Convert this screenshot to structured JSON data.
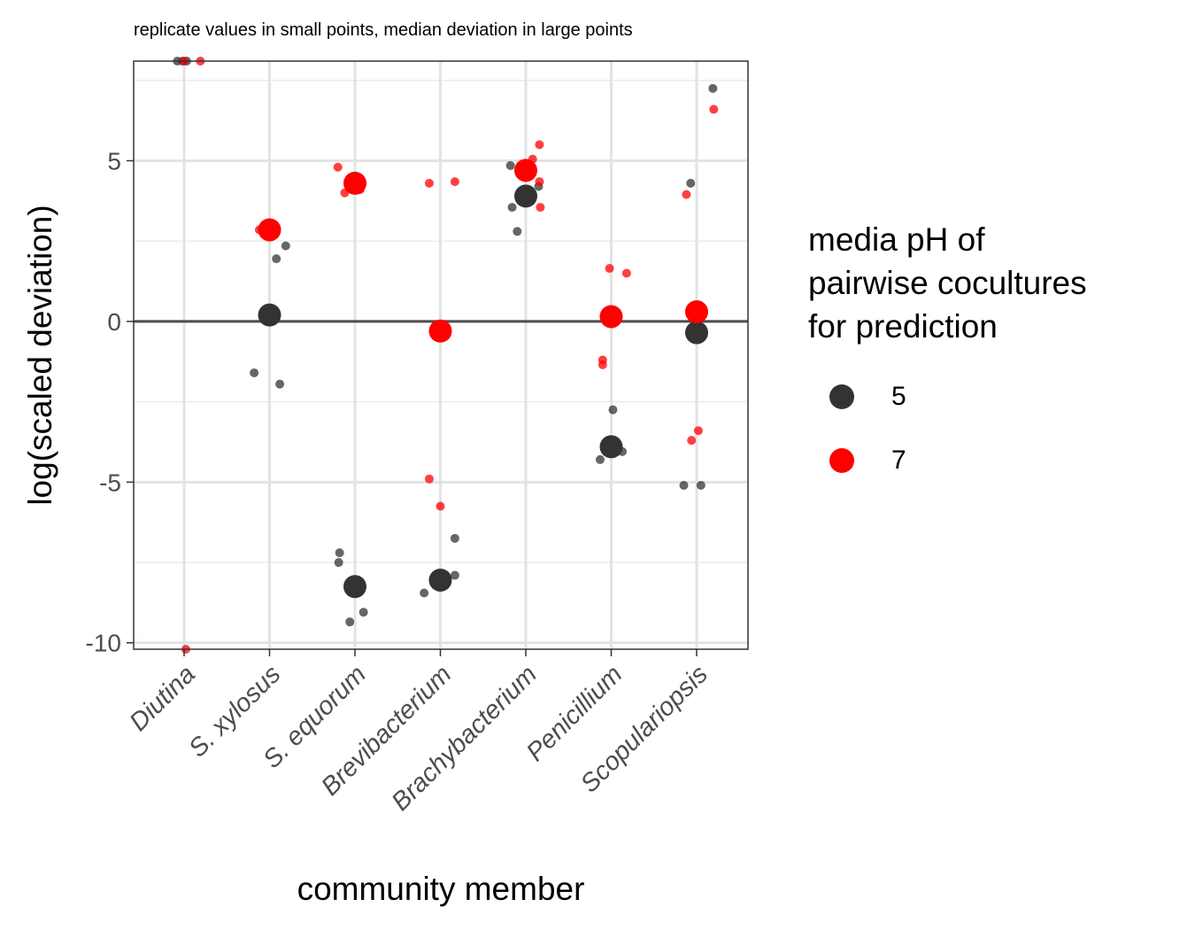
{
  "chart_data": {
    "type": "scatter",
    "title": "replicate values in small points, median deviation in large points",
    "xlabel": "community member",
    "ylabel": "log(scaled deviation)",
    "categories": [
      "Diutina",
      "S. xylosus",
      "S. equorum",
      "Brevibacterium",
      "Brachybacterium",
      "Penicillium",
      "Scopulariopsis"
    ],
    "ylim": [
      -10.2,
      8.1
    ],
    "yticks": [
      -10,
      -5,
      0,
      5
    ],
    "ytick_labels": [
      "-10",
      "-5",
      "0",
      "5"
    ],
    "reference_line_y": 0,
    "grid": true,
    "legend": {
      "title_lines": [
        "media pH of",
        "pairwise cocultures",
        "for prediction"
      ],
      "placement": "right",
      "entries": [
        {
          "label": "5",
          "color": "#333333"
        },
        {
          "label": "7",
          "color": "#ff0000"
        }
      ]
    },
    "series": [
      {
        "name": "5",
        "color": "#333333",
        "replicates": [
          {
            "category": "Diutina",
            "offset": -0.08,
            "y": 8.1
          },
          {
            "category": "Diutina",
            "offset": -0.02,
            "y": 8.1
          },
          {
            "category": "Diutina",
            "offset": 0.03,
            "y": 8.1
          },
          {
            "category": "S. xylosus",
            "offset": -0.18,
            "y": -1.6
          },
          {
            "category": "S. xylosus",
            "offset": 0.08,
            "y": 1.95
          },
          {
            "category": "S. xylosus",
            "offset": 0.19,
            "y": 2.35
          },
          {
            "category": "S. xylosus",
            "offset": 0.12,
            "y": -1.95
          },
          {
            "category": "S. equorum",
            "offset": -0.18,
            "y": -7.2
          },
          {
            "category": "S. equorum",
            "offset": -0.19,
            "y": -7.5
          },
          {
            "category": "S. equorum",
            "offset": -0.06,
            "y": -9.35
          },
          {
            "category": "S. equorum",
            "offset": 0.1,
            "y": -9.05
          },
          {
            "category": "Brevibacterium",
            "offset": -0.19,
            "y": -8.45
          },
          {
            "category": "Brevibacterium",
            "offset": 0.04,
            "y": -8.15
          },
          {
            "category": "Brevibacterium",
            "offset": 0.17,
            "y": -7.9
          },
          {
            "category": "Brevibacterium",
            "offset": 0.17,
            "y": -6.75
          },
          {
            "category": "Brachybacterium",
            "offset": -0.18,
            "y": 4.85
          },
          {
            "category": "Brachybacterium",
            "offset": -0.16,
            "y": 3.55
          },
          {
            "category": "Brachybacterium",
            "offset": -0.1,
            "y": 2.8
          },
          {
            "category": "Brachybacterium",
            "offset": 0.15,
            "y": 4.2
          },
          {
            "category": "Penicillium",
            "offset": -0.13,
            "y": -4.3
          },
          {
            "category": "Penicillium",
            "offset": 0.02,
            "y": -2.75
          },
          {
            "category": "Penicillium",
            "offset": 0.13,
            "y": -4.05
          },
          {
            "category": "Scopulariopsis",
            "offset": -0.15,
            "y": -5.1
          },
          {
            "category": "Scopulariopsis",
            "offset": -0.07,
            "y": 4.3
          },
          {
            "category": "Scopulariopsis",
            "offset": 0.05,
            "y": -5.1
          },
          {
            "category": "Scopulariopsis",
            "offset": 0.19,
            "y": 7.25
          }
        ],
        "medians": [
          {
            "category": "S. xylosus",
            "y": 0.2
          },
          {
            "category": "S. equorum",
            "y": -8.25
          },
          {
            "category": "Brevibacterium",
            "y": -8.05
          },
          {
            "category": "Brachybacterium",
            "y": 3.9
          },
          {
            "category": "Penicillium",
            "y": -3.9
          },
          {
            "category": "Scopulariopsis",
            "y": -0.35
          }
        ]
      },
      {
        "name": "7",
        "color": "#ff0000",
        "replicates": [
          {
            "category": "Diutina",
            "offset": 0.0,
            "y": 8.1
          },
          {
            "category": "Diutina",
            "offset": 0.19,
            "y": 8.1
          },
          {
            "category": "Diutina",
            "offset": 0.02,
            "y": -10.2
          },
          {
            "category": "S. xylosus",
            "offset": -0.12,
            "y": 2.85
          },
          {
            "category": "S. xylosus",
            "offset": 0.05,
            "y": 2.8
          },
          {
            "category": "S. equorum",
            "offset": -0.2,
            "y": 4.8
          },
          {
            "category": "S. equorum",
            "offset": -0.12,
            "y": 4.0
          },
          {
            "category": "S. equorum",
            "offset": 0.06,
            "y": 4.1
          },
          {
            "category": "S. equorum",
            "offset": 0.08,
            "y": 4.3
          },
          {
            "category": "Brevibacterium",
            "offset": -0.13,
            "y": 4.3
          },
          {
            "category": "Brevibacterium",
            "offset": 0.17,
            "y": 4.35
          },
          {
            "category": "Brevibacterium",
            "offset": -0.13,
            "y": -4.9
          },
          {
            "category": "Brevibacterium",
            "offset": 0.0,
            "y": -5.75
          },
          {
            "category": "Brachybacterium",
            "offset": 0.16,
            "y": 5.5
          },
          {
            "category": "Brachybacterium",
            "offset": 0.08,
            "y": 5.05
          },
          {
            "category": "Brachybacterium",
            "offset": 0.16,
            "y": 4.35
          },
          {
            "category": "Brachybacterium",
            "offset": 0.17,
            "y": 3.55
          },
          {
            "category": "Penicillium",
            "offset": -0.02,
            "y": 1.65
          },
          {
            "category": "Penicillium",
            "offset": 0.18,
            "y": 1.5
          },
          {
            "category": "Penicillium",
            "offset": -0.1,
            "y": -1.2
          },
          {
            "category": "Penicillium",
            "offset": -0.1,
            "y": -1.35
          },
          {
            "category": "Scopulariopsis",
            "offset": -0.12,
            "y": 3.95
          },
          {
            "category": "Scopulariopsis",
            "offset": 0.2,
            "y": 6.6
          },
          {
            "category": "Scopulariopsis",
            "offset": -0.06,
            "y": -3.7
          },
          {
            "category": "Scopulariopsis",
            "offset": 0.02,
            "y": -3.4
          }
        ],
        "medians": [
          {
            "category": "S. xylosus",
            "y": 2.85
          },
          {
            "category": "S. equorum",
            "y": 4.3
          },
          {
            "category": "Brevibacterium",
            "y": -0.3
          },
          {
            "category": "Brachybacterium",
            "y": 4.7
          },
          {
            "category": "Penicillium",
            "y": 0.15
          },
          {
            "category": "Scopulariopsis",
            "y": 0.3
          }
        ]
      }
    ]
  }
}
